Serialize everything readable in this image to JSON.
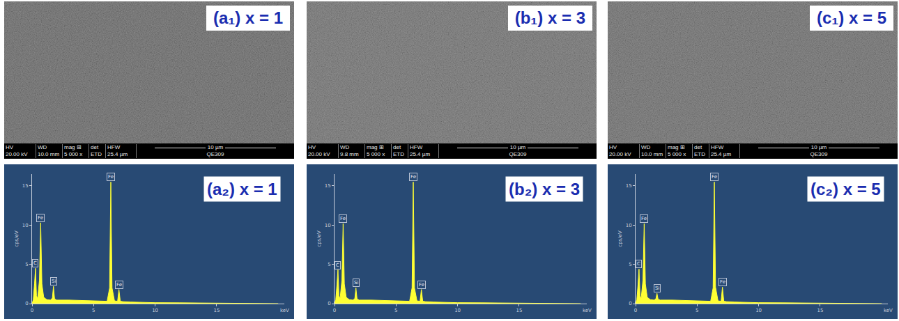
{
  "sem_images": [
    {
      "label": "(a₁) x = 1",
      "info": [
        {
          "name": "HV",
          "value": "20.00 kV"
        },
        {
          "name": "WD",
          "value": "10.0 mm"
        },
        {
          "name": "mag ⊞",
          "value": "5 000 x"
        },
        {
          "name": "det",
          "value": "ETD"
        },
        {
          "name": "HFW",
          "value": "25.4 µm"
        }
      ],
      "scale_bar": "10 µm",
      "sample": "QE309"
    },
    {
      "label": "(b₁) x = 3",
      "info": [
        {
          "name": "HV",
          "value": "20.00 kV"
        },
        {
          "name": "WD",
          "value": "9.8 mm"
        },
        {
          "name": "mag ⊞",
          "value": "5 000 x"
        },
        {
          "name": "det",
          "value": "ETD"
        },
        {
          "name": "HFW",
          "value": "25.4 µm"
        }
      ],
      "scale_bar": "10 µm",
      "sample": "QE309"
    },
    {
      "label": "(c₁) x = 5",
      "info": [
        {
          "name": "HV",
          "value": "20.00 kV"
        },
        {
          "name": "WD",
          "value": "10.0 mm"
        },
        {
          "name": "mag ⊞",
          "value": "5 000 x"
        },
        {
          "name": "det",
          "value": "ETD"
        },
        {
          "name": "HFW",
          "value": "25.4 µm"
        }
      ],
      "scale_bar": "10 µm",
      "sample": "QE309"
    }
  ],
  "chart_data": [
    {
      "type": "area",
      "title": "(a₂) x = 1",
      "x_label": "keV",
      "y_label": "cps/eV",
      "color": "#ffff33",
      "grid": false,
      "x": [
        0,
        0.1,
        0.2,
        0.28,
        0.36,
        0.45,
        0.6,
        0.7,
        0.8,
        0.95,
        1.2,
        1.5,
        1.65,
        1.74,
        1.83,
        2.0,
        3,
        4,
        5,
        6.1,
        6.3,
        6.4,
        6.5,
        6.7,
        6.95,
        7.06,
        7.17,
        7.4,
        8,
        9,
        10,
        12,
        15,
        20
      ],
      "values": [
        0,
        0.5,
        2.5,
        4.5,
        1.0,
        0.6,
        3,
        10.3,
        2.5,
        0.8,
        0.5,
        0.45,
        0.7,
        2.2,
        0.6,
        0.45,
        0.45,
        0.4,
        0.35,
        0.3,
        2,
        15.5,
        2,
        0.35,
        0.3,
        1.8,
        0.3,
        0.25,
        0.2,
        0.15,
        0.12,
        0.1,
        0.05,
        0
      ],
      "xlim": [
        0,
        20.5
      ],
      "xticks": [
        0,
        5,
        10,
        15
      ],
      "ylim": [
        0,
        16.5
      ],
      "yticks": [
        0,
        5,
        10,
        15
      ],
      "annotations": [
        {
          "text": "C",
          "x": 0.28,
          "y": 4.5
        },
        {
          "text": "Fe",
          "x": 0.7,
          "y": 10.3
        },
        {
          "text": "Si",
          "x": 1.74,
          "y": 2.2
        },
        {
          "text": "Fe",
          "x": 6.4,
          "y": 15.5
        },
        {
          "text": "Fe",
          "x": 7.06,
          "y": 1.8
        }
      ]
    },
    {
      "type": "area",
      "title": "(b₂) x = 3",
      "x_label": "keV",
      "y_label": "cps/eV",
      "color": "#ffff33",
      "grid": false,
      "x": [
        0,
        0.1,
        0.2,
        0.28,
        0.36,
        0.45,
        0.6,
        0.7,
        0.8,
        0.95,
        1.2,
        1.5,
        1.65,
        1.74,
        1.83,
        2.0,
        3,
        4,
        5,
        6.1,
        6.3,
        6.4,
        6.5,
        6.7,
        6.95,
        7.06,
        7.17,
        7.4,
        8,
        9,
        10,
        12,
        15,
        20
      ],
      "values": [
        0,
        0.5,
        2.4,
        4.3,
        1.0,
        0.6,
        3,
        10.2,
        2.5,
        0.8,
        0.5,
        0.45,
        0.65,
        2.0,
        0.6,
        0.45,
        0.45,
        0.4,
        0.35,
        0.3,
        2,
        15.5,
        2,
        0.35,
        0.3,
        1.8,
        0.3,
        0.25,
        0.2,
        0.15,
        0.12,
        0.1,
        0.05,
        0
      ],
      "xlim": [
        0,
        20.5
      ],
      "xticks": [
        0,
        5,
        10,
        15
      ],
      "ylim": [
        0,
        16.5
      ],
      "yticks": [
        0,
        5,
        10,
        15
      ],
      "annotations": [
        {
          "text": "C",
          "x": 0.28,
          "y": 4.3
        },
        {
          "text": "Fe",
          "x": 0.7,
          "y": 10.2
        },
        {
          "text": "Si",
          "x": 1.74,
          "y": 2.0
        },
        {
          "text": "Fe",
          "x": 6.4,
          "y": 15.5
        },
        {
          "text": "Fe",
          "x": 7.06,
          "y": 1.8
        }
      ]
    },
    {
      "type": "area",
      "title": "(c₂) x = 5",
      "x_label": "keV",
      "y_label": "cps/eV",
      "color": "#ffff33",
      "grid": false,
      "x": [
        0,
        0.1,
        0.2,
        0.28,
        0.36,
        0.45,
        0.6,
        0.7,
        0.8,
        0.95,
        1.2,
        1.5,
        1.65,
        1.74,
        1.83,
        2.0,
        3,
        4,
        5,
        6.1,
        6.3,
        6.4,
        6.5,
        6.7,
        6.95,
        7.06,
        7.17,
        7.4,
        8,
        9,
        10,
        12,
        15,
        20
      ],
      "values": [
        0,
        0.5,
        2.4,
        4.4,
        1.0,
        0.6,
        3,
        10.2,
        2.5,
        0.8,
        0.5,
        0.45,
        0.6,
        1.3,
        0.55,
        0.45,
        0.45,
        0.4,
        0.35,
        0.3,
        2,
        15.5,
        2.1,
        0.35,
        0.3,
        2.1,
        0.3,
        0.25,
        0.2,
        0.15,
        0.12,
        0.1,
        0.05,
        0
      ],
      "xlim": [
        0,
        20.5
      ],
      "xticks": [
        0,
        5,
        10,
        15
      ],
      "ylim": [
        0,
        16.5
      ],
      "yticks": [
        0,
        5,
        10,
        15
      ],
      "annotations": [
        {
          "text": "C",
          "x": 0.28,
          "y": 4.4
        },
        {
          "text": "Fe",
          "x": 0.7,
          "y": 10.2
        },
        {
          "text": "Si",
          "x": 1.74,
          "y": 1.3
        },
        {
          "text": "Fe",
          "x": 6.4,
          "y": 15.5
        },
        {
          "text": "Fe",
          "x": 7.06,
          "y": 2.1
        }
      ]
    }
  ]
}
